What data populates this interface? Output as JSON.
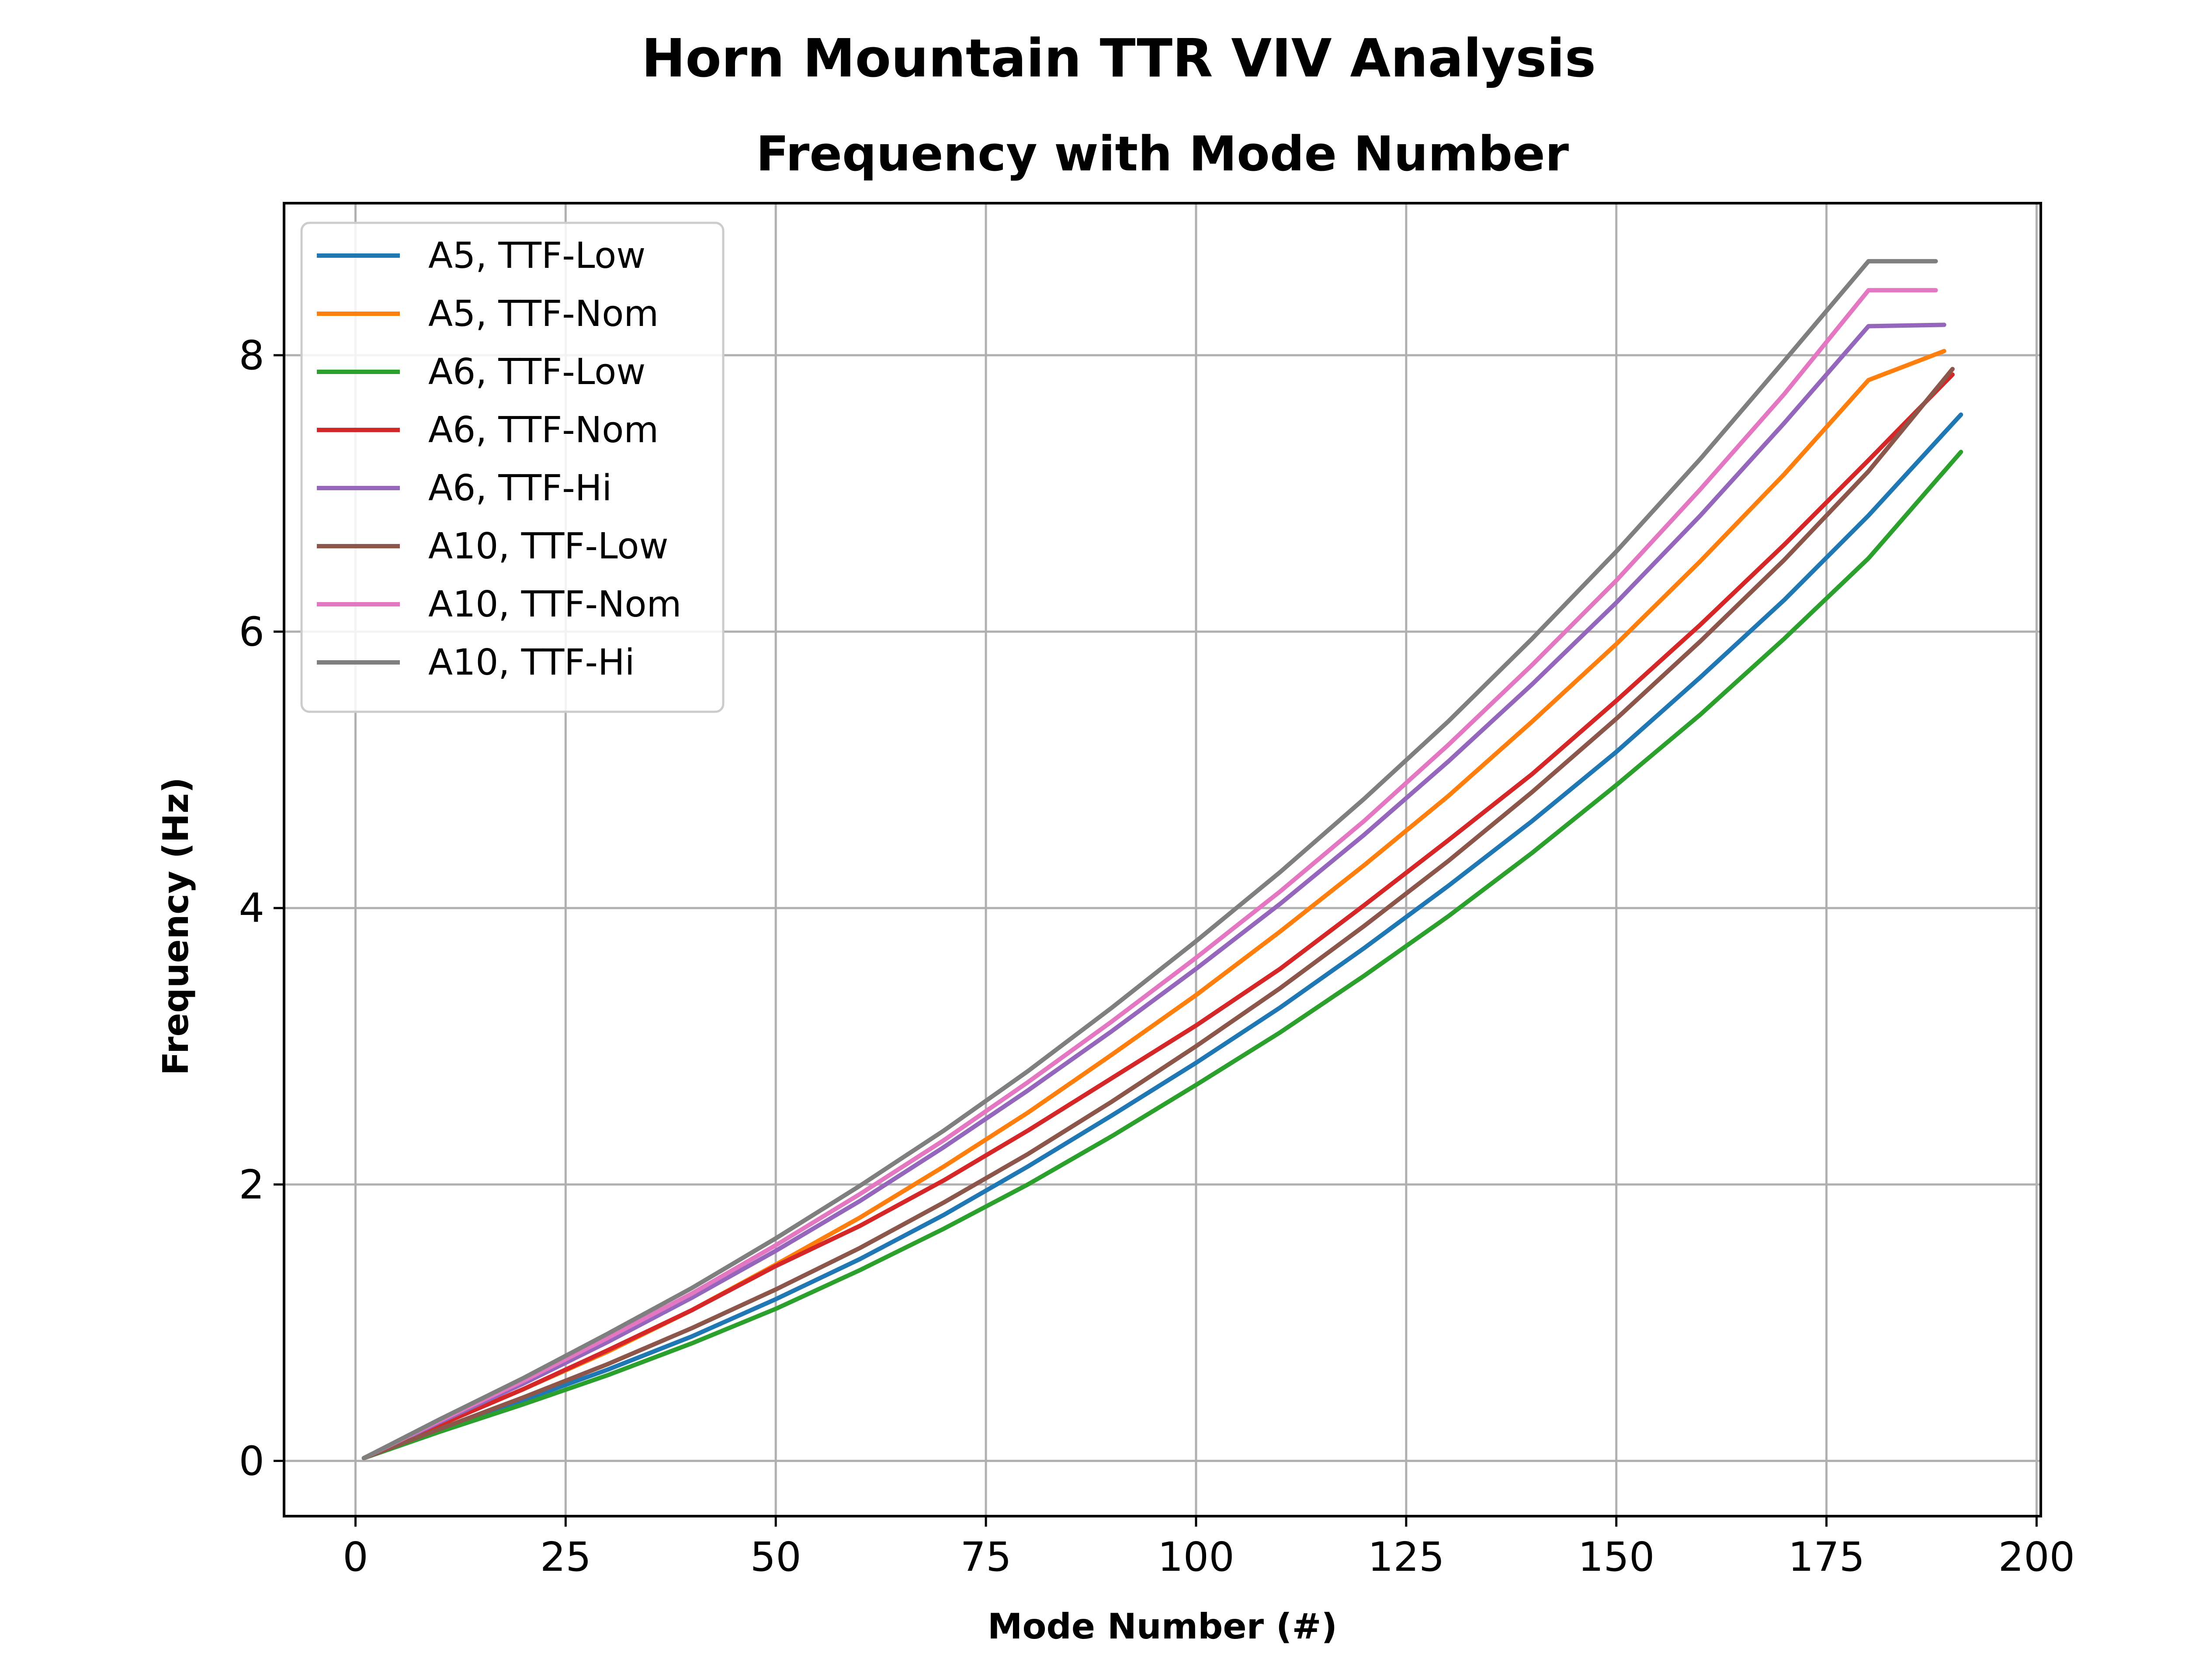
{
  "chart_data": {
    "type": "line",
    "suptitle": "Horn Mountain TTR VIV Analysis",
    "title": "Frequency with Mode Number",
    "xlabel": "Mode Number (#)",
    "ylabel": "Frequency (Hz)",
    "xlim": [
      -8.5,
      200.5
    ],
    "ylim": [
      -0.4,
      9.1
    ],
    "xticks": [
      0,
      25,
      50,
      75,
      100,
      125,
      150,
      175,
      200
    ],
    "yticks": [
      0,
      2,
      4,
      6,
      8
    ],
    "xtick_labels": [
      "0",
      "25",
      "50",
      "75",
      "100",
      "125",
      "150",
      "175",
      "200"
    ],
    "ytick_labels": [
      "0",
      "2",
      "4",
      "6",
      "8"
    ],
    "grid": true,
    "legend_position": "upper-left",
    "series": [
      {
        "name": "A5, TTF-Low",
        "color": "#1f77b4",
        "x": [
          1,
          10,
          20,
          30,
          40,
          50,
          60,
          70,
          80,
          90,
          100,
          110,
          120,
          130,
          140,
          150,
          160,
          170,
          180,
          191
        ],
        "y": [
          0.02,
          0.23,
          0.44,
          0.66,
          0.9,
          1.17,
          1.46,
          1.78,
          2.13,
          2.5,
          2.88,
          3.28,
          3.71,
          4.16,
          4.63,
          5.13,
          5.67,
          6.23,
          6.84,
          7.57
        ]
      },
      {
        "name": "A5, TTF-Nom",
        "color": "#ff7f0e",
        "x": [
          1,
          10,
          20,
          30,
          40,
          50,
          60,
          70,
          80,
          90,
          100,
          110,
          120,
          130,
          140,
          150,
          160,
          170,
          180,
          189
        ],
        "y": [
          0.02,
          0.26,
          0.52,
          0.79,
          1.09,
          1.42,
          1.76,
          2.13,
          2.52,
          2.94,
          3.37,
          3.83,
          4.31,
          4.81,
          5.35,
          5.91,
          6.51,
          7.14,
          7.82,
          8.03
        ]
      },
      {
        "name": "A6, TTF-Low",
        "color": "#2ca02c",
        "x": [
          1,
          10,
          20,
          30,
          40,
          50,
          60,
          70,
          80,
          90,
          100,
          110,
          120,
          130,
          140,
          150,
          160,
          170,
          180,
          191
        ],
        "y": [
          0.02,
          0.21,
          0.41,
          0.62,
          0.85,
          1.1,
          1.38,
          1.68,
          2.0,
          2.35,
          2.72,
          3.1,
          3.51,
          3.94,
          4.4,
          4.89,
          5.4,
          5.95,
          6.53,
          7.3
        ]
      },
      {
        "name": "A6, TTF-Nom",
        "color": "#d62728",
        "x": [
          1,
          10,
          20,
          30,
          40,
          50,
          60,
          70,
          80,
          90,
          100,
          110,
          120,
          130,
          140,
          150,
          160,
          170,
          180,
          190
        ],
        "y": [
          0.02,
          0.26,
          0.52,
          0.8,
          1.09,
          1.41,
          1.7,
          2.03,
          2.39,
          2.77,
          3.15,
          3.56,
          4.02,
          4.49,
          4.97,
          5.5,
          6.05,
          6.63,
          7.24,
          7.86
        ]
      },
      {
        "name": "A6, TTF-Hi",
        "color": "#9467bd",
        "x": [
          1,
          10,
          20,
          30,
          40,
          50,
          60,
          70,
          80,
          90,
          100,
          110,
          120,
          130,
          140,
          150,
          160,
          170,
          180,
          189
        ],
        "y": [
          0.02,
          0.28,
          0.56,
          0.86,
          1.18,
          1.52,
          1.88,
          2.27,
          2.68,
          3.11,
          3.56,
          4.03,
          4.53,
          5.06,
          5.62,
          6.21,
          6.84,
          7.51,
          8.21,
          8.22
        ]
      },
      {
        "name": "A10, TTF-Low",
        "color": "#8c564b",
        "x": [
          1,
          10,
          20,
          30,
          40,
          50,
          60,
          70,
          80,
          90,
          100,
          110,
          120,
          130,
          140,
          150,
          160,
          170,
          180,
          190
        ],
        "y": [
          0.02,
          0.23,
          0.46,
          0.7,
          0.96,
          1.24,
          1.54,
          1.87,
          2.22,
          2.6,
          3.0,
          3.42,
          3.87,
          4.34,
          4.84,
          5.37,
          5.93,
          6.52,
          7.16,
          7.9
        ]
      },
      {
        "name": "A10, TTF-Nom",
        "color": "#e377c2",
        "x": [
          1,
          10,
          20,
          30,
          40,
          50,
          60,
          70,
          80,
          90,
          100,
          110,
          120,
          130,
          140,
          150,
          160,
          170,
          180,
          188
        ],
        "y": [
          0.02,
          0.29,
          0.58,
          0.89,
          1.21,
          1.56,
          1.93,
          2.32,
          2.74,
          3.18,
          3.64,
          4.12,
          4.63,
          5.18,
          5.76,
          6.37,
          7.03,
          7.72,
          8.47,
          8.47
        ]
      },
      {
        "name": "A10, TTF-Hi",
        "color": "#7f7f7f",
        "x": [
          1,
          10,
          20,
          30,
          40,
          50,
          60,
          70,
          80,
          90,
          100,
          110,
          120,
          130,
          140,
          150,
          160,
          170,
          180,
          188
        ],
        "y": [
          0.02,
          0.3,
          0.6,
          0.92,
          1.25,
          1.61,
          1.99,
          2.39,
          2.82,
          3.28,
          3.76,
          4.26,
          4.79,
          5.35,
          5.95,
          6.58,
          7.25,
          7.96,
          8.68,
          8.68
        ]
      }
    ]
  }
}
